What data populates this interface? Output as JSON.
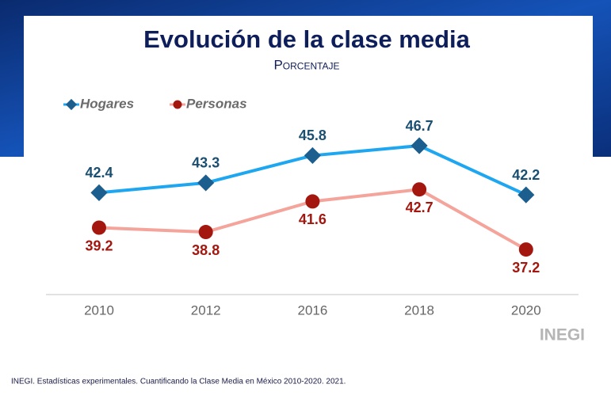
{
  "chart_data": {
    "type": "line",
    "title": "Evolución de la clase media",
    "subtitle": "Porcentaje",
    "categories": [
      "2010",
      "2012",
      "2016",
      "2018",
      "2020"
    ],
    "series": [
      {
        "name": "Hogares",
        "color": "#1ea7f0",
        "marker_color": "#1c5f8f",
        "label_color": "#1b4f72",
        "values": [
          42.4,
          43.3,
          45.8,
          46.7,
          42.2
        ]
      },
      {
        "name": "Personas",
        "color": "#f4a49a",
        "marker_color": "#a3170f",
        "label_color": "#a3170f",
        "values": [
          39.2,
          38.8,
          41.6,
          42.7,
          37.2
        ]
      }
    ]
  },
  "logo": "INEGI",
  "source": "INEGI. Estadísticas experimentales. Cuantificando la Clase Media en México 2010-2020. 2021."
}
